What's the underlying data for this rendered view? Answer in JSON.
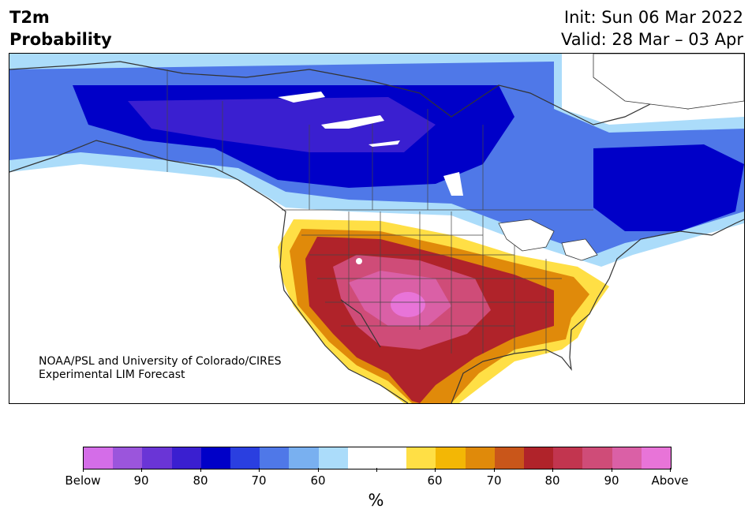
{
  "title": {
    "line1": "T2m",
    "line2": "Probability"
  },
  "meta": {
    "init": "Init: Sun 06 Mar 2022",
    "valid": "Valid: 28 Mar – 03 Apr"
  },
  "credit": {
    "line1": "NOAA/PSL and University of Colorado/CIRES",
    "line2": "Experimental LIM Forecast"
  },
  "colorbar": {
    "colors": [
      "#d46de8",
      "#9b55dc",
      "#6a35d6",
      "#3a1fd0",
      "#0000c8",
      "#2a3fe0",
      "#4f78e8",
      "#79b0f0",
      "#abdcfa",
      "#ffffff",
      "#ffffff",
      "#ffdf45",
      "#f3b705",
      "#e08a0a",
      "#c9561a",
      "#b0232a",
      "#c2354f",
      "#cf4c78",
      "#da60a6",
      "#e874d8"
    ],
    "tick_labels": [
      "Below",
      "90",
      "80",
      "70",
      "60",
      "",
      "60",
      "70",
      "80",
      "90",
      "Above"
    ],
    "unit": "%"
  },
  "map": {
    "region": "North America",
    "cold_side_colors": {
      "outer": "#abdcfa",
      "mid": "#4f78e8",
      "core": "#0000c8",
      "peak": "#3a1fd0"
    },
    "warm_side_colors": {
      "outer": "#ffdf45",
      "mid": "#e08a0a",
      "core": "#b0232a",
      "peak": "#cf4c78",
      "max": "#da60a6"
    }
  }
}
